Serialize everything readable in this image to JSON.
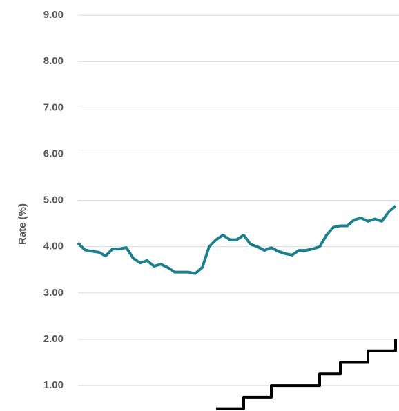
{
  "chart_data": {
    "type": "line",
    "y_label": "Rate (%)",
    "ylim": [
      0.45,
      9.33
    ],
    "yticks": [
      {
        "value": 1,
        "label": "1.00"
      },
      {
        "value": 2,
        "label": "2.00"
      },
      {
        "value": 3,
        "label": "3.00"
      },
      {
        "value": 4,
        "label": "4.00"
      },
      {
        "value": 5,
        "label": "5.00"
      },
      {
        "value": 6,
        "label": "6.00"
      },
      {
        "value": 7,
        "label": "7.00"
      },
      {
        "value": 8,
        "label": "8.00"
      },
      {
        "value": 9,
        "label": "9.00"
      }
    ],
    "grid": true,
    "series": [
      {
        "color": "#18808f",
        "step": false,
        "values": [
          4.08,
          3.93,
          3.9,
          3.88,
          3.8,
          3.95,
          3.95,
          3.98,
          3.75,
          3.65,
          3.7,
          3.58,
          3.62,
          3.55,
          3.45,
          3.45,
          3.45,
          3.42,
          3.55,
          4.0,
          4.15,
          4.25,
          4.15,
          4.15,
          4.25,
          4.05,
          4.0,
          3.92,
          3.98,
          3.9,
          3.85,
          3.82,
          3.92,
          3.92,
          3.95,
          4.0,
          4.25,
          4.42,
          4.45,
          4.45,
          4.58,
          4.62,
          4.55,
          4.6,
          4.55,
          4.75,
          4.88
        ]
      },
      {
        "color": "#000000",
        "step": true,
        "values": [
          null,
          null,
          null,
          null,
          null,
          null,
          null,
          null,
          null,
          null,
          null,
          null,
          null,
          null,
          null,
          null,
          null,
          null,
          null,
          null,
          0.5,
          0.5,
          0.5,
          0.5,
          0.75,
          0.75,
          0.75,
          0.75,
          1.0,
          1.0,
          1.0,
          1.0,
          1.0,
          1.0,
          1.0,
          1.25,
          1.25,
          1.25,
          1.5,
          1.5,
          1.5,
          1.5,
          1.75,
          1.75,
          1.75,
          1.75,
          2.0
        ]
      }
    ]
  }
}
